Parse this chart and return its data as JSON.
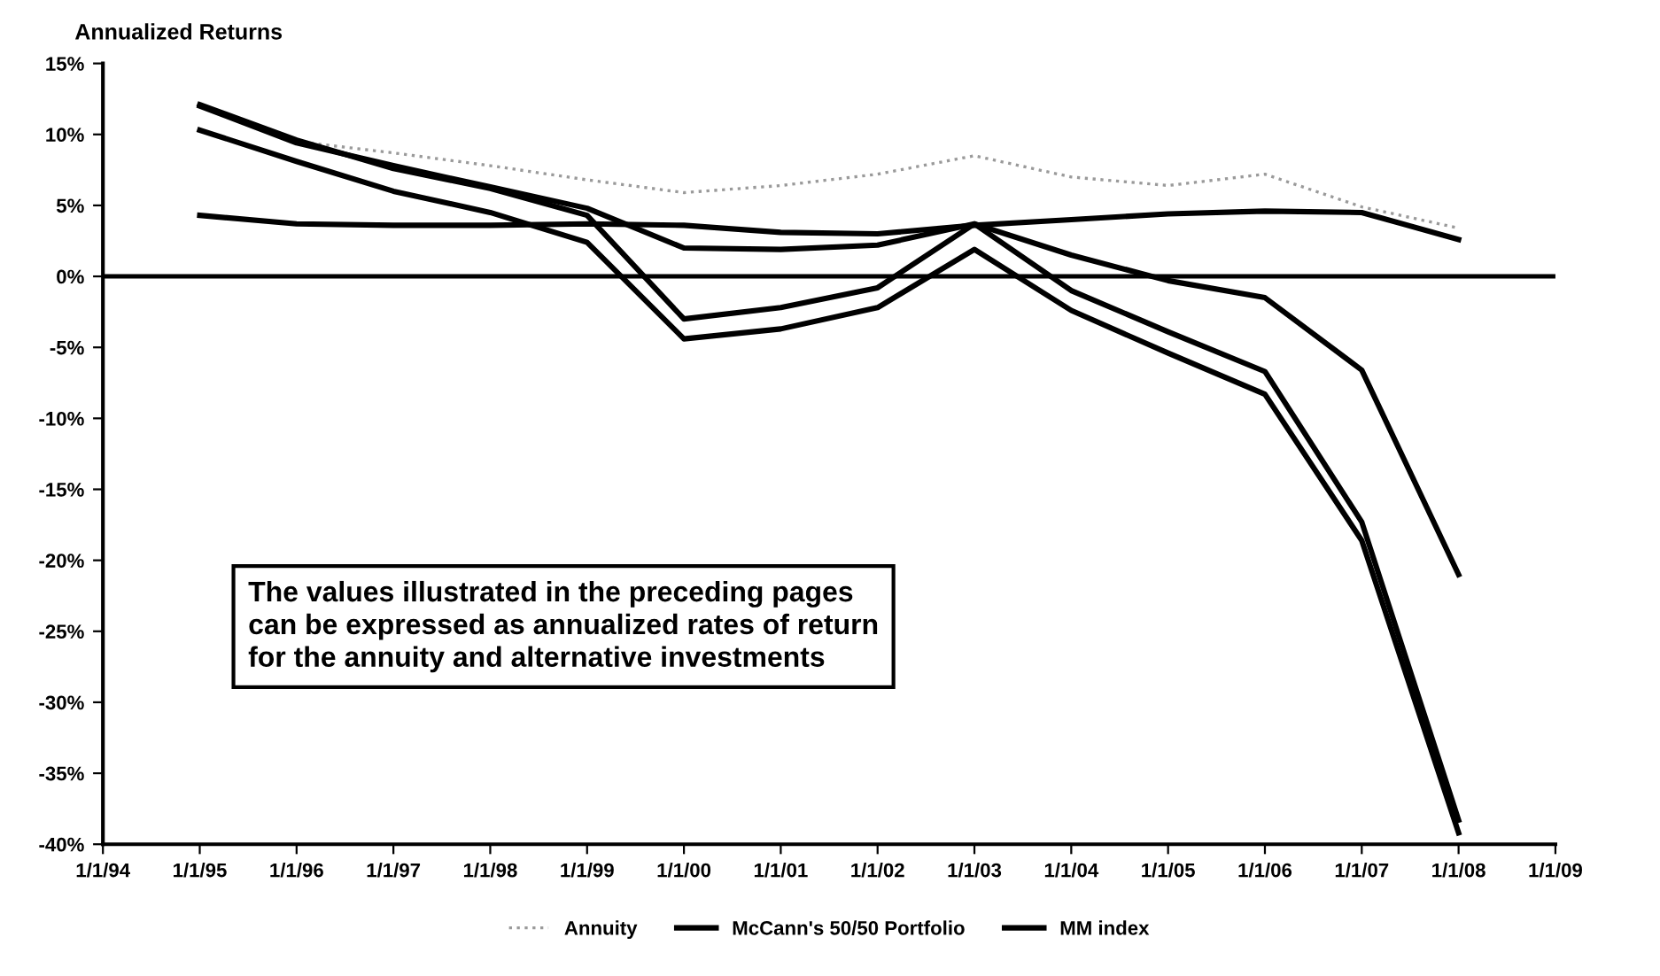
{
  "chart_data": {
    "type": "line",
    "title": "Annualized Returns",
    "categories": [
      "1/1/94",
      "1/1/95",
      "1/1/96",
      "1/1/97",
      "1/1/98",
      "1/1/99",
      "1/1/00",
      "1/1/01",
      "1/1/02",
      "1/1/03",
      "1/1/04",
      "1/1/05",
      "1/1/06",
      "1/1/07",
      "1/1/08",
      "1/1/09"
    ],
    "series": [
      {
        "name": "Annuity",
        "color": "#9a9a9a",
        "line_style": "dotted",
        "values": [
          null,
          12.0,
          9.5,
          8.7,
          7.8,
          6.8,
          5.9,
          6.4,
          7.2,
          8.5,
          7.0,
          6.4,
          7.2,
          4.9,
          3.4,
          null
        ]
      },
      {
        "color": "#000000",
        "values": [
          null,
          12.1,
          9.6,
          7.6,
          6.2,
          4.3,
          -3.0,
          -2.2,
          -0.8,
          3.7,
          -1.0,
          -3.9,
          -6.7,
          -17.3,
          -38.3,
          null
        ]
      },
      {
        "name": "McCann's 50/50 Portfolio",
        "color": "#000000",
        "values": [
          null,
          12.0,
          9.4,
          7.8,
          6.3,
          4.8,
          2.0,
          1.9,
          2.2,
          3.7,
          1.5,
          -0.3,
          -1.5,
          -6.6,
          -21.0,
          null
        ]
      },
      {
        "color": "#000000",
        "values": [
          null,
          10.3,
          8.1,
          6.0,
          4.5,
          2.4,
          -4.4,
          -3.7,
          -2.2,
          1.9,
          -2.4,
          -5.4,
          -8.3,
          -18.6,
          -39.2,
          null
        ]
      },
      {
        "name": "MM index",
        "color": "#000000",
        "values": [
          null,
          4.3,
          3.7,
          3.6,
          3.6,
          3.7,
          3.6,
          3.1,
          3.0,
          3.6,
          4.0,
          4.4,
          4.6,
          4.5,
          2.6,
          null
        ]
      }
    ],
    "ylim": [
      -40,
      15
    ],
    "yticks": [
      {
        "value": -40,
        "label": "-40%"
      },
      {
        "value": -35,
        "label": "-35%"
      },
      {
        "value": -30,
        "label": "-30%"
      },
      {
        "value": -25,
        "label": "-25%"
      },
      {
        "value": -20,
        "label": "-20%"
      },
      {
        "value": -15,
        "label": "-15%"
      },
      {
        "value": -10,
        "label": "-10%"
      },
      {
        "value": -5,
        "label": "-5%"
      },
      {
        "value": 0,
        "label": "0%"
      },
      {
        "value": 5,
        "label": "5%"
      },
      {
        "value": 10,
        "label": "10%"
      },
      {
        "value": 15,
        "label": "15%"
      }
    ],
    "ref_lines": [
      {
        "axis": "y",
        "value": 0,
        "color": "#000000"
      }
    ],
    "annotations": [
      "The values illustrated in the preceding pages\ncan be expressed as annualized rates of return\nfor the annuity and alternative investments"
    ],
    "grid": false,
    "legend": "bottom",
    "marker": "none",
    "line_style": "solid"
  }
}
